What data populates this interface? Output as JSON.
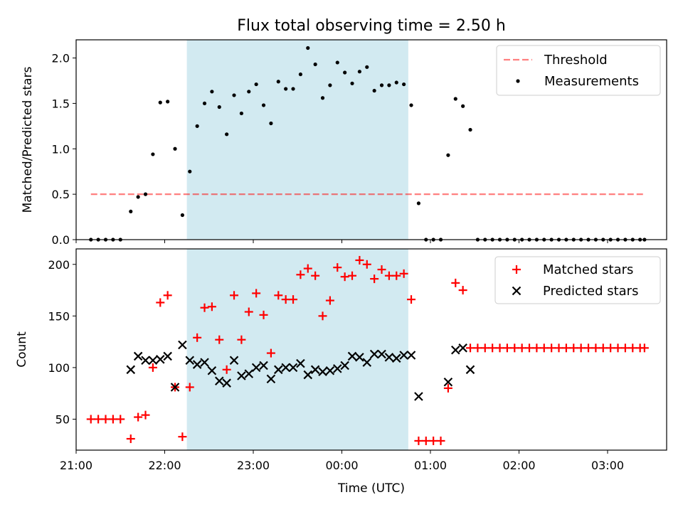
{
  "title": "Flux total observing time = 2.50 h",
  "colors": {
    "shade": "#add8e6",
    "threshold": "#ff0000",
    "measurement": "#000000",
    "matched": "#ff0000",
    "predicted": "#000000"
  },
  "chart_data": [
    {
      "type": "scatter",
      "panel": "top",
      "ylabel": "Matched/Predicted stars",
      "xlabel": "",
      "ylim": [
        0,
        2.2
      ],
      "yticks": [
        "0.0",
        "0.5",
        "1.0",
        "1.5",
        "2.0"
      ],
      "ytick_values": [
        0,
        0.5,
        1.0,
        1.5,
        2.0
      ],
      "legend_position": "upper right",
      "legend": [
        "Threshold",
        "Measurements"
      ],
      "observing_window": [
        "22:15",
        "00:45"
      ],
      "threshold": {
        "name": "Threshold",
        "value": 0.5,
        "x_range": [
          "21:10",
          "03:25"
        ],
        "style": "dashed"
      },
      "series": [
        {
          "name": "Measurements",
          "marker": "dot",
          "points": [
            [
              "21:10",
              0
            ],
            [
              "21:15",
              0
            ],
            [
              "21:20",
              0
            ],
            [
              "21:25",
              0
            ],
            [
              "21:30",
              0
            ],
            [
              "21:37",
              0.31
            ],
            [
              "21:42",
              0.47
            ],
            [
              "21:47",
              0.5
            ],
            [
              "21:52",
              0.94
            ],
            [
              "21:57",
              1.51
            ],
            [
              "22:02",
              1.52
            ],
            [
              "22:07",
              1.0
            ],
            [
              "22:12",
              0.27
            ],
            [
              "22:17",
              0.75
            ],
            [
              "22:22",
              1.25
            ],
            [
              "22:27",
              1.5
            ],
            [
              "22:32",
              1.63
            ],
            [
              "22:37",
              1.46
            ],
            [
              "22:42",
              1.16
            ],
            [
              "22:47",
              1.59
            ],
            [
              "22:52",
              1.39
            ],
            [
              "22:57",
              1.63
            ],
            [
              "23:02",
              1.71
            ],
            [
              "23:07",
              1.48
            ],
            [
              "23:12",
              1.28
            ],
            [
              "23:17",
              1.74
            ],
            [
              "23:22",
              1.66
            ],
            [
              "23:27",
              1.66
            ],
            [
              "23:32",
              1.82
            ],
            [
              "23:37",
              2.11
            ],
            [
              "23:42",
              1.93
            ],
            [
              "23:47",
              1.56
            ],
            [
              "23:52",
              1.7
            ],
            [
              "23:57",
              1.95
            ],
            [
              "00:02",
              1.84
            ],
            [
              "00:07",
              1.72
            ],
            [
              "00:12",
              1.85
            ],
            [
              "00:17",
              1.9
            ],
            [
              "00:22",
              1.64
            ],
            [
              "00:27",
              1.7
            ],
            [
              "00:32",
              1.7
            ],
            [
              "00:37",
              1.73
            ],
            [
              "00:42",
              1.71
            ],
            [
              "00:47",
              1.48
            ],
            [
              "00:52",
              0.4
            ],
            [
              "00:57",
              0
            ],
            [
              "01:02",
              0
            ],
            [
              "01:07",
              0
            ],
            [
              "01:12",
              0.93
            ],
            [
              "01:17",
              1.55
            ],
            [
              "01:22",
              1.47
            ],
            [
              "01:27",
              1.21
            ],
            [
              "01:32",
              0
            ],
            [
              "01:37",
              0
            ],
            [
              "01:42",
              0
            ],
            [
              "01:47",
              0
            ],
            [
              "01:52",
              0
            ],
            [
              "01:57",
              0
            ],
            [
              "02:02",
              0
            ],
            [
              "02:07",
              0
            ],
            [
              "02:12",
              0
            ],
            [
              "02:17",
              0
            ],
            [
              "02:22",
              0
            ],
            [
              "02:27",
              0
            ],
            [
              "02:32",
              0
            ],
            [
              "02:37",
              0
            ],
            [
              "02:42",
              0
            ],
            [
              "02:47",
              0
            ],
            [
              "02:52",
              0
            ],
            [
              "02:57",
              0
            ],
            [
              "03:02",
              0
            ],
            [
              "03:07",
              0
            ],
            [
              "03:12",
              0
            ],
            [
              "03:17",
              0
            ],
            [
              "03:22",
              0
            ],
            [
              "03:25",
              0
            ]
          ]
        }
      ]
    },
    {
      "type": "scatter",
      "panel": "bottom",
      "ylabel": "Count",
      "xlabel": "Time (UTC)",
      "ylim": [
        20,
        215
      ],
      "yticks": [
        "50",
        "100",
        "150",
        "200"
      ],
      "ytick_values": [
        50,
        100,
        150,
        200
      ],
      "xlim": [
        "21:00",
        "03:40"
      ],
      "xticks": [
        "21:00",
        "22:00",
        "23:00",
        "00:00",
        "01:00",
        "02:00",
        "03:00"
      ],
      "legend_position": "upper right",
      "legend": [
        "Matched stars",
        "Predicted stars"
      ],
      "observing_window": [
        "22:15",
        "00:45"
      ],
      "series": [
        {
          "name": "Matched stars",
          "marker": "plus",
          "points": [
            [
              "21:10",
              50
            ],
            [
              "21:15",
              50
            ],
            [
              "21:20",
              50
            ],
            [
              "21:25",
              50
            ],
            [
              "21:30",
              50
            ],
            [
              "21:37",
              31
            ],
            [
              "21:42",
              52
            ],
            [
              "21:47",
              54
            ],
            [
              "21:52",
              100
            ],
            [
              "21:57",
              163
            ],
            [
              "22:02",
              170
            ],
            [
              "22:07",
              81
            ],
            [
              "22:12",
              33
            ],
            [
              "22:17",
              81
            ],
            [
              "22:22",
              129
            ],
            [
              "22:27",
              158
            ],
            [
              "22:32",
              159
            ],
            [
              "22:37",
              127
            ],
            [
              "22:42",
              98
            ],
            [
              "22:47",
              170
            ],
            [
              "22:52",
              127
            ],
            [
              "22:57",
              154
            ],
            [
              "23:02",
              172
            ],
            [
              "23:07",
              151
            ],
            [
              "23:12",
              114
            ],
            [
              "23:17",
              170
            ],
            [
              "23:22",
              166
            ],
            [
              "23:27",
              166
            ],
            [
              "23:32",
              190
            ],
            [
              "23:37",
              196
            ],
            [
              "23:42",
              189
            ],
            [
              "23:47",
              150
            ],
            [
              "23:52",
              165
            ],
            [
              "23:57",
              197
            ],
            [
              "00:02",
              188
            ],
            [
              "00:07",
              189
            ],
            [
              "00:12",
              204
            ],
            [
              "00:17",
              200
            ],
            [
              "00:22",
              186
            ],
            [
              "00:27",
              195
            ],
            [
              "00:32",
              189
            ],
            [
              "00:37",
              189
            ],
            [
              "00:42",
              191
            ],
            [
              "00:47",
              166
            ],
            [
              "00:52",
              29
            ],
            [
              "00:57",
              29
            ],
            [
              "01:02",
              29
            ],
            [
              "01:07",
              29
            ],
            [
              "01:12",
              80
            ],
            [
              "01:17",
              182
            ],
            [
              "01:22",
              175
            ],
            [
              "01:27",
              119
            ],
            [
              "01:32",
              119
            ],
            [
              "01:37",
              119
            ],
            [
              "01:42",
              119
            ],
            [
              "01:47",
              119
            ],
            [
              "01:52",
              119
            ],
            [
              "01:57",
              119
            ],
            [
              "02:02",
              119
            ],
            [
              "02:07",
              119
            ],
            [
              "02:12",
              119
            ],
            [
              "02:17",
              119
            ],
            [
              "02:22",
              119
            ],
            [
              "02:27",
              119
            ],
            [
              "02:32",
              119
            ],
            [
              "02:37",
              119
            ],
            [
              "02:42",
              119
            ],
            [
              "02:47",
              119
            ],
            [
              "02:52",
              119
            ],
            [
              "02:57",
              119
            ],
            [
              "03:02",
              119
            ],
            [
              "03:07",
              119
            ],
            [
              "03:12",
              119
            ],
            [
              "03:17",
              119
            ],
            [
              "03:22",
              119
            ],
            [
              "03:25",
              119
            ]
          ]
        },
        {
          "name": "Predicted stars",
          "marker": "x",
          "points": [
            [
              "21:37",
              98
            ],
            [
              "21:42",
              111
            ],
            [
              "21:47",
              107
            ],
            [
              "21:52",
              107
            ],
            [
              "21:57",
              108
            ],
            [
              "22:02",
              111
            ],
            [
              "22:07",
              81
            ],
            [
              "22:12",
              122
            ],
            [
              "22:17",
              107
            ],
            [
              "22:22",
              103
            ],
            [
              "22:27",
              105
            ],
            [
              "22:32",
              97
            ],
            [
              "22:37",
              87
            ],
            [
              "22:42",
              85
            ],
            [
              "22:47",
              107
            ],
            [
              "22:52",
              92
            ],
            [
              "22:57",
              94
            ],
            [
              "23:02",
              100
            ],
            [
              "23:07",
              102
            ],
            [
              "23:12",
              89
            ],
            [
              "23:17",
              98
            ],
            [
              "23:22",
              100
            ],
            [
              "23:27",
              100
            ],
            [
              "23:32",
              104
            ],
            [
              "23:37",
              93
            ],
            [
              "23:42",
              98
            ],
            [
              "23:47",
              96
            ],
            [
              "23:52",
              97
            ],
            [
              "23:57",
              99
            ],
            [
              "00:02",
              102
            ],
            [
              "00:07",
              111
            ],
            [
              "00:12",
              110
            ],
            [
              "00:17",
              105
            ],
            [
              "00:22",
              113
            ],
            [
              "00:27",
              113
            ],
            [
              "00:32",
              110
            ],
            [
              "00:37",
              109
            ],
            [
              "00:42",
              112
            ],
            [
              "00:47",
              112
            ],
            [
              "00:52",
              72
            ],
            [
              "01:12",
              86
            ],
            [
              "01:17",
              117
            ],
            [
              "01:22",
              119
            ],
            [
              "01:27",
              98
            ]
          ]
        }
      ]
    }
  ]
}
